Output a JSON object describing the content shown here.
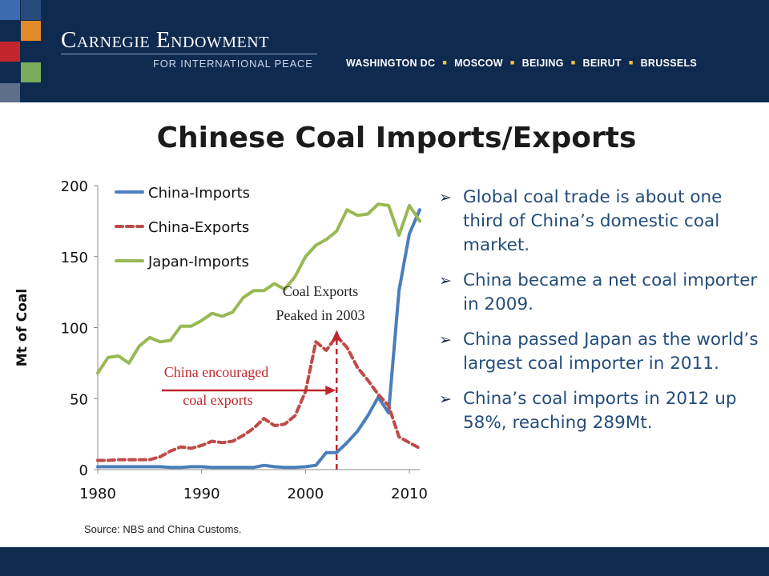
{
  "header": {
    "org_name": "Carnegie Endowment",
    "org_subtitle": "FOR INTERNATIONAL PEACE",
    "cities": [
      "WASHINGTON DC",
      "MOSCOW",
      "BEIJING",
      "BEIRUT",
      "BRUSSELS"
    ],
    "logo_colors": [
      "#e08a2a",
      "#c4262e",
      "#3b6bb0",
      "#7aab5a"
    ]
  },
  "slide": {
    "title": "Chinese Coal Imports/Exports",
    "source": "Source: NBS and China Customs."
  },
  "bullets": [
    "Global coal trade is about one third of China’s domestic coal market.",
    "China became a net coal importer in 2009.",
    "China passed Japan as the world’s largest coal importer in 2011.",
    "China’s coal imports in 2012 up 58%, reaching 289Mt."
  ],
  "chart_data": {
    "type": "line",
    "ylabel": "Mt of Coal",
    "ylim": [
      0,
      200
    ],
    "yticks": [
      "0",
      "50",
      "100",
      "150",
      "200"
    ],
    "xticks": [
      "1980",
      "1990",
      "2000",
      "2010"
    ],
    "xlim": [
      1980,
      2011
    ],
    "grid": false,
    "legend_position": "top-left",
    "x": [
      1980,
      1981,
      1982,
      1983,
      1984,
      1985,
      1986,
      1987,
      1988,
      1989,
      1990,
      1991,
      1992,
      1993,
      1994,
      1995,
      1996,
      1997,
      1998,
      1999,
      2000,
      2001,
      2002,
      2003,
      2004,
      2005,
      2006,
      2007,
      2008,
      2009,
      2010,
      2011
    ],
    "series": [
      {
        "name": "China-Imports",
        "color": "#4a7ebb",
        "dash": "",
        "values": [
          2,
          2,
          2,
          2,
          2,
          2,
          2,
          1.5,
          1.5,
          2,
          2,
          1.5,
          1.5,
          1.5,
          1.5,
          1.5,
          3,
          2,
          1.5,
          1.5,
          2,
          3,
          12,
          12,
          19,
          27,
          38,
          51,
          40,
          126,
          166,
          183
        ]
      },
      {
        "name": "China-Exports",
        "color": "#be4b48",
        "dash": "8,5",
        "values": [
          6.5,
          6.5,
          7,
          7,
          7,
          7,
          9,
          13,
          16,
          15,
          17,
          20,
          19,
          20,
          24,
          29,
          36,
          31,
          32,
          38,
          55,
          90,
          84,
          94,
          86,
          72,
          63,
          53,
          45,
          23,
          19,
          15
        ]
      },
      {
        "name": "Japan-Imports",
        "color": "#98b954",
        "dash": "",
        "values": [
          68,
          79,
          80,
          75,
          87,
          93,
          90,
          91,
          101,
          101,
          105,
          110,
          108,
          111,
          121,
          126,
          126,
          131,
          127,
          136,
          150,
          158,
          162,
          168,
          183,
          179,
          180,
          187,
          186,
          165,
          186,
          175
        ]
      }
    ],
    "annotations": [
      {
        "text_lines": [
          "Coal Exports",
          "Peaked in 2003"
        ],
        "color": "#222222"
      },
      {
        "text_lines": [
          "China encouraged",
          "coal exports"
        ],
        "color": "#c0262d"
      }
    ]
  }
}
